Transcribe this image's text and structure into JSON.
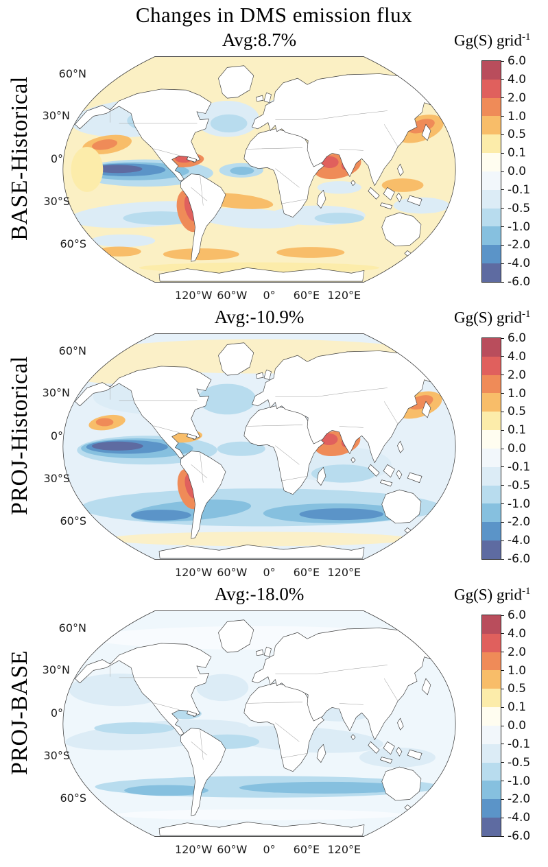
{
  "figure": {
    "title": "Changes in DMS emission flux"
  },
  "colorbar": {
    "unit_label": "Gg(S) grid",
    "unit_exponent": "-1",
    "ticks": [
      "6.0",
      "4.0",
      "2.0",
      "1.0",
      "0.5",
      "0.1",
      "0.0",
      "-0.1",
      "-0.5",
      "-1.0",
      "-2.0",
      "-4.0",
      "-6.0"
    ],
    "segment_colors": [
      "#b94d5c",
      "#e0605d",
      "#ef8b58",
      "#f8bd69",
      "#fcecaa",
      "#fffdf0",
      "#f2f7fb",
      "#dcecf6",
      "#b8dcee",
      "#86c0df",
      "#5b94c8",
      "#5e6ba1"
    ]
  },
  "palette": {
    "c0": "#b94d5c",
    "c1": "#e0605d",
    "c2": "#ef8b58",
    "c3": "#f8bd69",
    "c4": "#fcecaa",
    "c5": "#fffdf0",
    "c6": "#f2f7fb",
    "c7": "#dcecf6",
    "c8": "#b8dcee",
    "c9": "#86c0df",
    "c10": "#5b94c8",
    "c11": "#5e6ba1"
  },
  "axis": {
    "lat_labels": [
      "60°N",
      "30°N",
      "0°",
      "30°S",
      "60°S"
    ],
    "lon_labels": [
      "120°W",
      "60°W",
      "0°",
      "60°E",
      "120°E"
    ]
  },
  "panels": [
    {
      "row_label": "BASE-Historical",
      "avg_label": "Avg:8.7%",
      "ocean_base": "#fbf0c4",
      "blobs": [
        [
          205,
          145,
          175,
          42,
          -4,
          "c7"
        ],
        [
          250,
          152,
          80,
          26,
          0,
          "c8"
        ],
        [
          420,
          148,
          80,
          40,
          0,
          "c7"
        ],
        [
          424,
          158,
          46,
          20,
          0,
          "c8"
        ],
        [
          560,
          120,
          40,
          18,
          0,
          "c7"
        ],
        [
          215,
          268,
          170,
          30,
          0,
          "c8"
        ],
        [
          190,
          264,
          135,
          20,
          0,
          "c9"
        ],
        [
          168,
          261,
          98,
          14,
          0,
          "c10"
        ],
        [
          146,
          259,
          62,
          9,
          0,
          "c11"
        ],
        [
          455,
          262,
          55,
          16,
          0,
          "c8"
        ],
        [
          457,
          263,
          30,
          9,
          0,
          "c9"
        ],
        [
          700,
          300,
          55,
          14,
          0,
          "c7"
        ],
        [
          215,
          360,
          190,
          28,
          -3,
          "c7"
        ],
        [
          255,
          368,
          95,
          15,
          0,
          "c8"
        ],
        [
          475,
          368,
          130,
          22,
          3,
          "c7"
        ],
        [
          645,
          362,
          120,
          22,
          0,
          "c7"
        ],
        [
          700,
          368,
          62,
          12,
          0,
          "c8"
        ],
        [
          905,
          340,
          70,
          18,
          0,
          "c7"
        ],
        [
          160,
          418,
          80,
          14,
          0,
          "c7"
        ],
        [
          120,
          205,
          62,
          20,
          -8,
          "c3"
        ],
        [
          114,
          205,
          32,
          11,
          -8,
          "c2"
        ],
        [
          318,
          240,
          44,
          15,
          -5,
          "c2"
        ],
        [
          312,
          237,
          22,
          8,
          0,
          "c1"
        ],
        [
          326,
          352,
          30,
          48,
          -18,
          "c2"
        ],
        [
          330,
          346,
          15,
          30,
          -18,
          "c1"
        ],
        [
          440,
          330,
          95,
          16,
          5,
          "c3"
        ],
        [
          695,
          252,
          60,
          28,
          -10,
          "c2"
        ],
        [
          676,
          244,
          22,
          13,
          0,
          "c1"
        ],
        [
          722,
          252,
          17,
          11,
          0,
          "c1"
        ],
        [
          900,
          170,
          62,
          28,
          -15,
          "c3"
        ],
        [
          905,
          164,
          34,
          14,
          -15,
          "c2"
        ],
        [
          858,
          295,
          52,
          15,
          0,
          "c3"
        ],
        [
          355,
          448,
          95,
          13,
          0,
          "c3"
        ],
        [
          628,
          444,
          85,
          12,
          0,
          "c3"
        ],
        [
          150,
          442,
          55,
          11,
          0,
          "c3"
        ],
        [
          500,
          478,
          300,
          12,
          0,
          "c4"
        ],
        [
          70,
          260,
          40,
          50,
          0,
          "c4"
        ]
      ]
    },
    {
      "row_label": "PROJ-Historical",
      "avg_label": "Avg:-10.9%",
      "ocean_base": "#e6f1f9",
      "blobs": [
        [
          500,
          60,
          440,
          38,
          0,
          "#fbf0c8"
        ],
        [
          150,
          95,
          130,
          26,
          0,
          "#fbf0c8"
        ],
        [
          830,
          90,
          160,
          28,
          0,
          "#fbf0c8"
        ],
        [
          500,
          465,
          380,
          16,
          0,
          "#fbf0c8"
        ],
        [
          235,
          150,
          150,
          38,
          0,
          "c7"
        ],
        [
          300,
          160,
          70,
          22,
          0,
          "c8"
        ],
        [
          420,
          155,
          72,
          34,
          0,
          "c8"
        ],
        [
          700,
          300,
          130,
          40,
          0,
          "c7"
        ],
        [
          710,
          320,
          80,
          20,
          0,
          "c8"
        ],
        [
          220,
          268,
          175,
          32,
          0,
          "c8"
        ],
        [
          195,
          264,
          140,
          22,
          0,
          "c9"
        ],
        [
          170,
          261,
          102,
          15,
          0,
          "c10"
        ],
        [
          146,
          259,
          64,
          10,
          0,
          "c11"
        ],
        [
          455,
          265,
          60,
          16,
          0,
          "c8"
        ],
        [
          505,
          395,
          450,
          42,
          0,
          "c8"
        ],
        [
          330,
          402,
          150,
          22,
          -4,
          "c9"
        ],
        [
          690,
          408,
          180,
          22,
          0,
          "c9"
        ],
        [
          705,
          410,
          105,
          13,
          0,
          "c10"
        ],
        [
          255,
          412,
          75,
          12,
          0,
          "c10"
        ],
        [
          695,
          252,
          58,
          28,
          -10,
          "c2"
        ],
        [
          674,
          244,
          22,
          13,
          0,
          "c1"
        ],
        [
          722,
          252,
          17,
          11,
          0,
          "c1"
        ],
        [
          898,
          168,
          60,
          27,
          -15,
          "c3"
        ],
        [
          903,
          162,
          32,
          14,
          -15,
          "c2"
        ],
        [
          326,
          354,
          28,
          46,
          -18,
          "c2"
        ],
        [
          330,
          348,
          14,
          28,
          -18,
          "c1"
        ],
        [
          316,
          238,
          42,
          13,
          -5,
          "c3"
        ],
        [
          120,
          207,
          46,
          16,
          -8,
          "c3"
        ],
        [
          114,
          206,
          22,
          9,
          0,
          "c2"
        ],
        [
          545,
          235,
          30,
          10,
          0,
          "c3"
        ]
      ]
    },
    {
      "row_label": "PROJ-BASE",
      "avg_label": "Avg:-18.0%",
      "ocean_base": "#eff7fc",
      "blobs": [
        [
          245,
          285,
          230,
          30,
          -4,
          "c7"
        ],
        [
          610,
          295,
          200,
          28,
          3,
          "c7"
        ],
        [
          150,
          185,
          125,
          36,
          0,
          "c7"
        ],
        [
          408,
          180,
          65,
          30,
          0,
          "c7"
        ],
        [
          700,
          230,
          90,
          25,
          0,
          "c7"
        ],
        [
          316,
          238,
          40,
          12,
          0,
          "c8"
        ],
        [
          188,
          270,
          100,
          13,
          0,
          "c8"
        ],
        [
          420,
          300,
          80,
          16,
          0,
          "c8"
        ],
        [
          520,
          400,
          430,
          24,
          0,
          "c8"
        ],
        [
          665,
          402,
          215,
          13,
          0,
          "c9"
        ],
        [
          268,
          408,
          105,
          12,
          0,
          "c9"
        ],
        [
          845,
          335,
          95,
          22,
          0,
          "c7"
        ],
        [
          500,
          462,
          360,
          12,
          0,
          "#f8fbfe"
        ],
        [
          500,
          70,
          420,
          26,
          0,
          "#f8fbfe"
        ]
      ]
    }
  ],
  "chart_data": [
    {
      "type": "heatmap",
      "panel": "BASE-Historical",
      "title": "Avg:8.7%",
      "average_change_percent": 8.7,
      "units": "Gg(S) grid-1",
      "colorbar_levels": [
        -6.0,
        -4.0,
        -2.0,
        -1.0,
        -0.5,
        -0.1,
        0.0,
        0.1,
        0.5,
        1.0,
        2.0,
        4.0,
        6.0
      ],
      "x_ticks": [
        "120°W",
        "60°W",
        "0°",
        "60°E",
        "120°E"
      ],
      "y_ticks": [
        "60°N",
        "30°N",
        "0°",
        "30°S",
        "60°S"
      ],
      "legend_position": "right",
      "summary": "Mostly weak positive changes (pale yellow/orange) over global oceans; strong negative tongue (-2 to -6) in equatorial eastern Pacific; strong positive cells (>2) off Peru-Chile, Caribbean, Arabian Sea/Bay of Bengal and NW Pacific east of Japan"
    },
    {
      "type": "heatmap",
      "panel": "PROJ-Historical",
      "title": "Avg:-10.9%",
      "average_change_percent": -10.9,
      "units": "Gg(S) grid-1",
      "colorbar_levels": [
        -6.0,
        -4.0,
        -2.0,
        -1.0,
        -0.5,
        -0.1,
        0.0,
        0.1,
        0.5,
        1.0,
        2.0,
        4.0,
        6.0
      ],
      "x_ticks": [
        "120°W",
        "60°W",
        "0°",
        "60°E",
        "120°E"
      ],
      "y_ticks": [
        "60°N",
        "30°N",
        "0°",
        "30°S",
        "60°S"
      ],
      "legend_position": "right",
      "summary": "Predominantly negative changes (light-medium blue) over most oceans; strong negative equatorial eastern Pacific tongue and Southern Ocean band near 45-55°S; localized strong positives in Arabian Sea/Bay of Bengal, NW Pacific and Peru coast; weak positive band near Antarctica and Arctic margin"
    },
    {
      "type": "heatmap",
      "panel": "PROJ-BASE",
      "title": "Avg:-18.0%",
      "average_change_percent": -18.0,
      "units": "Gg(S) grid-1",
      "colorbar_levels": [
        -6.0,
        -4.0,
        -2.0,
        -1.0,
        -0.5,
        -0.1,
        0.0,
        0.1,
        0.5,
        1.0,
        2.0,
        4.0,
        6.0
      ],
      "x_ticks": [
        "120°W",
        "60°W",
        "0°",
        "60°E",
        "120°E"
      ],
      "y_ticks": [
        "60°N",
        "30°N",
        "0°",
        "30°S",
        "60°S"
      ],
      "legend_position": "right",
      "summary": "Uniform weak negative change (-0.1 to -0.5, very light blue) across nearly all oceans, with a stronger negative band (-1 to -2) circling the Southern Ocean near 45-55°S; no positive regions"
    }
  ]
}
